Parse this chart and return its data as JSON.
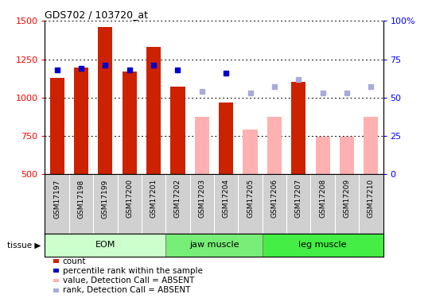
{
  "title": "GDS702 / 103720_at",
  "samples": [
    "GSM17197",
    "GSM17198",
    "GSM17199",
    "GSM17200",
    "GSM17201",
    "GSM17202",
    "GSM17203",
    "GSM17204",
    "GSM17205",
    "GSM17206",
    "GSM17207",
    "GSM17208",
    "GSM17209",
    "GSM17210"
  ],
  "bar_values": [
    1130,
    1195,
    1460,
    1170,
    1330,
    1070,
    null,
    970,
    null,
    null,
    1100,
    null,
    null,
    null
  ],
  "bar_absent_values": [
    null,
    null,
    null,
    null,
    null,
    null,
    875,
    null,
    790,
    875,
    null,
    745,
    745,
    875
  ],
  "rank_present": [
    68,
    69,
    71,
    68,
    71,
    68,
    null,
    66,
    null,
    null,
    null,
    null,
    null,
    null
  ],
  "rank_absent": [
    null,
    null,
    null,
    null,
    null,
    null,
    54,
    null,
    53,
    57,
    62,
    53,
    53,
    57
  ],
  "ylim": [
    500,
    1500
  ],
  "y2lim": [
    0,
    100
  ],
  "yticks": [
    500,
    750,
    1000,
    1250,
    1500
  ],
  "y2ticks": [
    0,
    25,
    50,
    75,
    100
  ],
  "bar_color_present": "#cc2200",
  "bar_color_absent": "#ffb0b0",
  "rank_color_present": "#0000cc",
  "rank_color_absent": "#aaaadd",
  "tissue_groups": [
    {
      "label": "EOM",
      "start": 0,
      "end": 4,
      "color": "#ccffcc"
    },
    {
      "label": "jaw muscle",
      "start": 5,
      "end": 8,
      "color": "#77ee77"
    },
    {
      "label": "leg muscle",
      "start": 9,
      "end": 13,
      "color": "#44ee44"
    }
  ],
  "legend_items": [
    {
      "label": "count",
      "color": "#cc2200"
    },
    {
      "label": "percentile rank within the sample",
      "color": "#0000cc"
    },
    {
      "label": "value, Detection Call = ABSENT",
      "color": "#ffb0b0"
    },
    {
      "label": "rank, Detection Call = ABSENT",
      "color": "#aaaadd"
    }
  ]
}
